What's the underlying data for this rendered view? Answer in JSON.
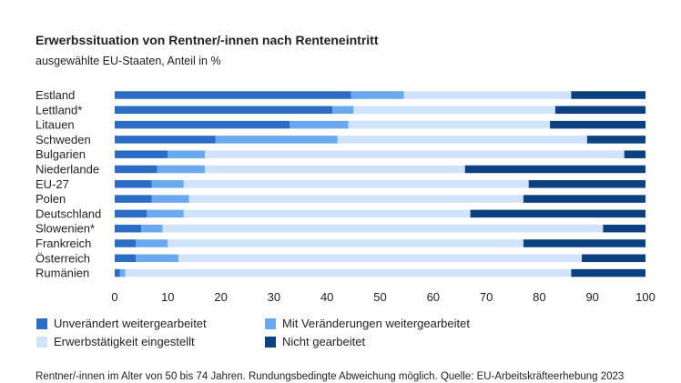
{
  "title": "Erwerbssituation von Rentner/-innen nach Renteneintritt",
  "subtitle": "ausgewählte EU-Staaten, Anteil in %",
  "footnote": "Rentner/-innen im Alter von 50 bis 74 Jahren. Rundungsbedingte Abweichung möglich. Quelle: EU-Arbeitskräfteerhebung 2023",
  "colors": {
    "unveraendert": "#2b6cc4",
    "mit_veraenderungen": "#6aa8ef",
    "eingestellt": "#cfe3fb",
    "nicht_gearbeitet": "#0b4181"
  },
  "legend": [
    {
      "label": "Unverändert weitergearbeitet",
      "color": "#2b6cc4"
    },
    {
      "label": "Mit Veränderungen weitergearbeitet",
      "color": "#6aa8ef"
    },
    {
      "label": "Erwerbstätigkeit eingestellt",
      "color": "#cfe3fb"
    },
    {
      "label": "Nicht gearbeitet",
      "color": "#0b4181"
    }
  ],
  "chart_data": {
    "type": "bar",
    "orientation": "horizontal",
    "stacked": true,
    "categories": [
      "Estland",
      "Lettland*",
      "Litauen",
      "Schweden",
      "Bulgarien",
      "Niederlande",
      "EU-27",
      "Polen",
      "Deutschland",
      "Slowenien*",
      "Frankreich",
      "Österreich",
      "Rumänien"
    ],
    "series": [
      {
        "name": "Unverändert weitergearbeitet",
        "values": [
          44.5,
          41,
          33,
          19,
          10,
          8,
          7,
          7,
          6,
          5,
          4,
          4,
          1
        ]
      },
      {
        "name": "Mit Veränderungen weitergearbeitet",
        "values": [
          10,
          4,
          11,
          23,
          7,
          9,
          6,
          7,
          7,
          4,
          6,
          8,
          1
        ]
      },
      {
        "name": "Erwerbstätigkeit eingestellt",
        "values": [
          31.5,
          38,
          38,
          47,
          79,
          49,
          65,
          63,
          54,
          83,
          67,
          76,
          84
        ]
      },
      {
        "name": "Nicht gearbeitet",
        "values": [
          14,
          17,
          18,
          11,
          4,
          34,
          22,
          23,
          33,
          8,
          23,
          12,
          14
        ]
      }
    ],
    "xlim": [
      0,
      100
    ],
    "xticks": [
      0,
      10,
      20,
      30,
      40,
      50,
      60,
      70,
      80,
      90,
      100
    ],
    "legend_position": "bottom",
    "grid": false
  }
}
